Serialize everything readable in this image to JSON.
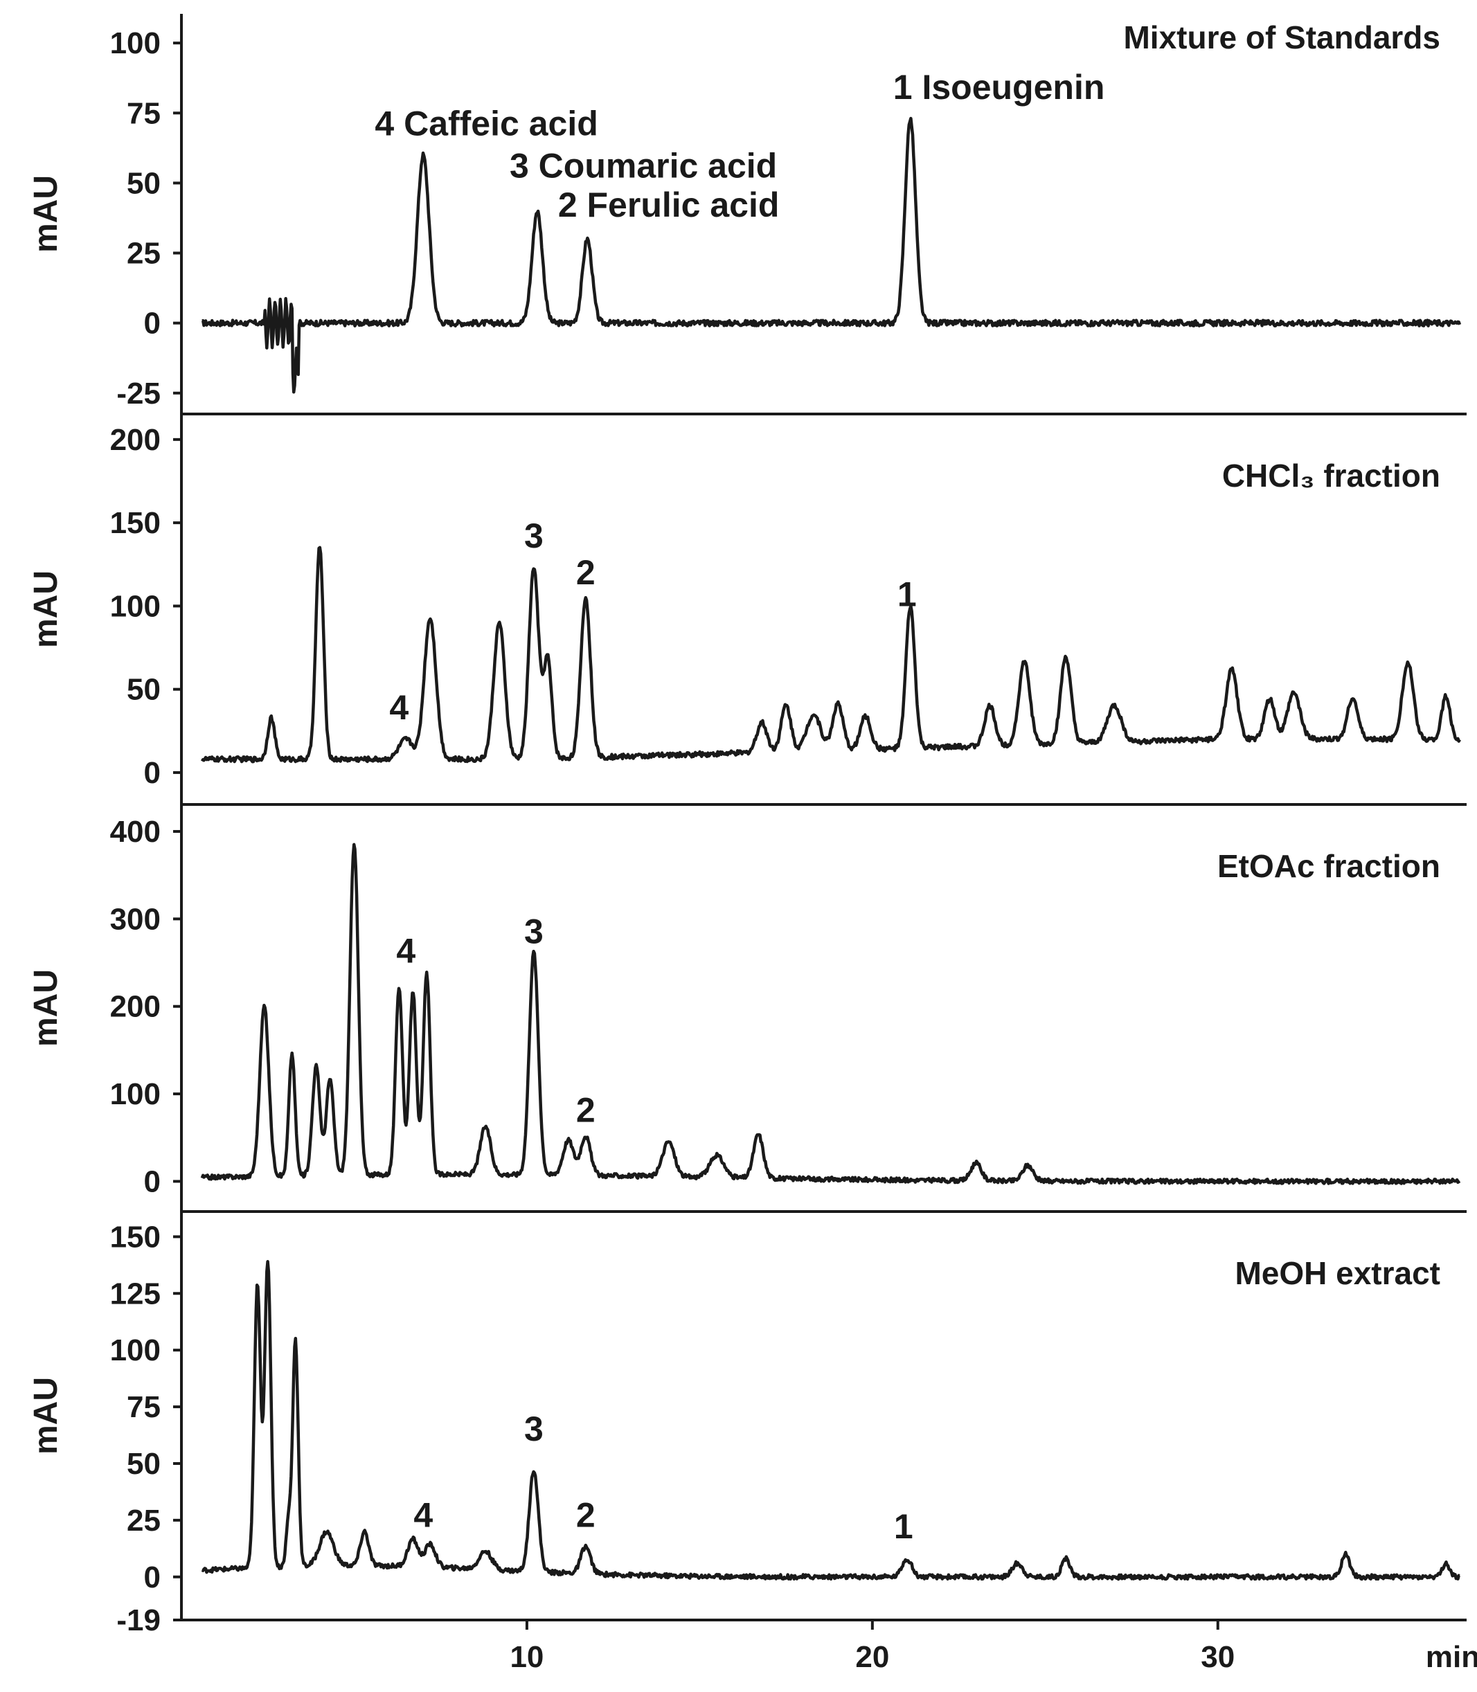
{
  "chart_data": [
    {
      "type": "line",
      "title": "Mixture of Standards",
      "ylabel": "mAU",
      "xlim": [
        0,
        37
      ],
      "ylim": [
        -30,
        103
      ],
      "yticks": [
        100,
        75,
        50,
        25,
        0,
        -25
      ],
      "baseline": 0,
      "noise": 1.0,
      "peaks": [
        {
          "x": 7.0,
          "y": 60,
          "w": 0.17
        },
        {
          "x": 10.3,
          "y": 40,
          "w": 0.15
        },
        {
          "x": 11.75,
          "y": 30,
          "w": 0.14
        },
        {
          "x": 21.1,
          "y": 73,
          "w": 0.15
        }
      ],
      "labels": [
        {
          "text": "4 Caffeic acid",
          "x": 5.6,
          "y": 67
        },
        {
          "text": "3 Coumaric acid",
          "x": 9.5,
          "y": 52
        },
        {
          "text": "2 Ferulic acid",
          "x": 10.9,
          "y": 38
        },
        {
          "text": "1 Isoeugenin",
          "x": 20.6,
          "y": 80
        }
      ]
    },
    {
      "type": "line",
      "title": "CHCl₃ fraction",
      "ylabel": "mAU",
      "xlim": [
        0,
        37
      ],
      "ylim": [
        -15,
        207
      ],
      "yticks": [
        200,
        150,
        100,
        50,
        0
      ],
      "baseline": 0,
      "noise": 1.5,
      "peaks": [
        {
          "x": 2.6,
          "y": 25,
          "w": 0.1
        },
        {
          "x": 4.0,
          "y": 128,
          "w": 0.11
        },
        {
          "x": 6.5,
          "y": 12,
          "w": 0.2
        },
        {
          "x": 7.2,
          "y": 85,
          "w": 0.17
        },
        {
          "x": 9.2,
          "y": 82,
          "w": 0.16
        },
        {
          "x": 10.2,
          "y": 115,
          "w": 0.14
        },
        {
          "x": 10.6,
          "y": 60,
          "w": 0.12
        },
        {
          "x": 11.7,
          "y": 96,
          "w": 0.14
        },
        {
          "x": 16.8,
          "y": 18,
          "w": 0.15
        },
        {
          "x": 17.5,
          "y": 28,
          "w": 0.14
        },
        {
          "x": 18.3,
          "y": 22,
          "w": 0.2
        },
        {
          "x": 19.0,
          "y": 28,
          "w": 0.15
        },
        {
          "x": 19.8,
          "y": 20,
          "w": 0.15
        },
        {
          "x": 21.1,
          "y": 85,
          "w": 0.13
        },
        {
          "x": 23.4,
          "y": 24,
          "w": 0.15
        },
        {
          "x": 24.4,
          "y": 50,
          "w": 0.16
        },
        {
          "x": 25.6,
          "y": 52,
          "w": 0.15
        },
        {
          "x": 27.0,
          "y": 22,
          "w": 0.2
        },
        {
          "x": 30.4,
          "y": 42,
          "w": 0.16
        },
        {
          "x": 31.5,
          "y": 24,
          "w": 0.15
        },
        {
          "x": 32.2,
          "y": 28,
          "w": 0.18
        },
        {
          "x": 33.9,
          "y": 25,
          "w": 0.15
        },
        {
          "x": 35.5,
          "y": 46,
          "w": 0.16
        },
        {
          "x": 36.6,
          "y": 26,
          "w": 0.12
        }
      ],
      "labels": [
        {
          "text": "3",
          "x": 10.2,
          "y": 135
        },
        {
          "text": "2",
          "x": 11.7,
          "y": 113
        },
        {
          "text": "1",
          "x": 21.0,
          "y": 100
        },
        {
          "text": "4",
          "x": 6.3,
          "y": 32
        }
      ]
    },
    {
      "type": "line",
      "title": "EtOAc fraction",
      "ylabel": "mAU",
      "xlim": [
        0,
        37
      ],
      "ylim": [
        -25,
        415
      ],
      "yticks": [
        400,
        300,
        200,
        100,
        0
      ],
      "baseline": 0,
      "noise": 2.5,
      "peaks": [
        {
          "x": 2.4,
          "y": 195,
          "w": 0.13
        },
        {
          "x": 3.2,
          "y": 140,
          "w": 0.09
        },
        {
          "x": 3.9,
          "y": 125,
          "w": 0.11
        },
        {
          "x": 4.3,
          "y": 110,
          "w": 0.11
        },
        {
          "x": 5.0,
          "y": 380,
          "w": 0.12
        },
        {
          "x": 6.3,
          "y": 215,
          "w": 0.1
        },
        {
          "x": 6.7,
          "y": 210,
          "w": 0.1
        },
        {
          "x": 7.1,
          "y": 230,
          "w": 0.1
        },
        {
          "x": 8.8,
          "y": 55,
          "w": 0.15
        },
        {
          "x": 10.2,
          "y": 255,
          "w": 0.13
        },
        {
          "x": 11.2,
          "y": 40,
          "w": 0.15
        },
        {
          "x": 11.7,
          "y": 45,
          "w": 0.14
        },
        {
          "x": 14.1,
          "y": 40,
          "w": 0.17
        },
        {
          "x": 15.5,
          "y": 25,
          "w": 0.2
        },
        {
          "x": 16.7,
          "y": 50,
          "w": 0.14
        },
        {
          "x": 23.0,
          "y": 20,
          "w": 0.15
        },
        {
          "x": 24.5,
          "y": 18,
          "w": 0.15
        }
      ],
      "labels": [
        {
          "text": "4",
          "x": 6.5,
          "y": 250
        },
        {
          "text": "3",
          "x": 10.2,
          "y": 272
        },
        {
          "text": "2",
          "x": 11.7,
          "y": 68
        }
      ]
    },
    {
      "type": "line",
      "title": "MeOH extract",
      "ylabel": "mAU",
      "xlabel": "min",
      "xlim": [
        0,
        37
      ],
      "ylim": [
        -19,
        155
      ],
      "yticks": [
        150,
        125,
        100,
        75,
        50,
        25,
        0,
        -19
      ],
      "xticks": [
        10,
        20,
        30
      ],
      "baseline": 0,
      "noise": 1.0,
      "peaks": [
        {
          "x": 2.2,
          "y": 125,
          "w": 0.09
        },
        {
          "x": 2.5,
          "y": 135,
          "w": 0.09
        },
        {
          "x": 3.1,
          "y": 20,
          "w": 0.07
        },
        {
          "x": 3.3,
          "y": 100,
          "w": 0.08
        },
        {
          "x": 4.2,
          "y": 15,
          "w": 0.2
        },
        {
          "x": 5.3,
          "y": 15,
          "w": 0.12
        },
        {
          "x": 6.7,
          "y": 12,
          "w": 0.15
        },
        {
          "x": 7.2,
          "y": 10,
          "w": 0.15
        },
        {
          "x": 8.8,
          "y": 8,
          "w": 0.18
        },
        {
          "x": 10.2,
          "y": 45,
          "w": 0.13
        },
        {
          "x": 11.7,
          "y": 12,
          "w": 0.14
        },
        {
          "x": 21.0,
          "y": 8,
          "w": 0.14
        },
        {
          "x": 24.2,
          "y": 6,
          "w": 0.15
        },
        {
          "x": 25.6,
          "y": 8,
          "w": 0.12
        },
        {
          "x": 33.7,
          "y": 10,
          "w": 0.12
        },
        {
          "x": 36.6,
          "y": 6,
          "w": 0.1
        }
      ],
      "labels": [
        {
          "text": "4",
          "x": 7.0,
          "y": 22
        },
        {
          "text": "3",
          "x": 10.2,
          "y": 60
        },
        {
          "text": "2",
          "x": 11.7,
          "y": 22
        },
        {
          "text": "1",
          "x": 20.9,
          "y": 17
        }
      ]
    }
  ]
}
